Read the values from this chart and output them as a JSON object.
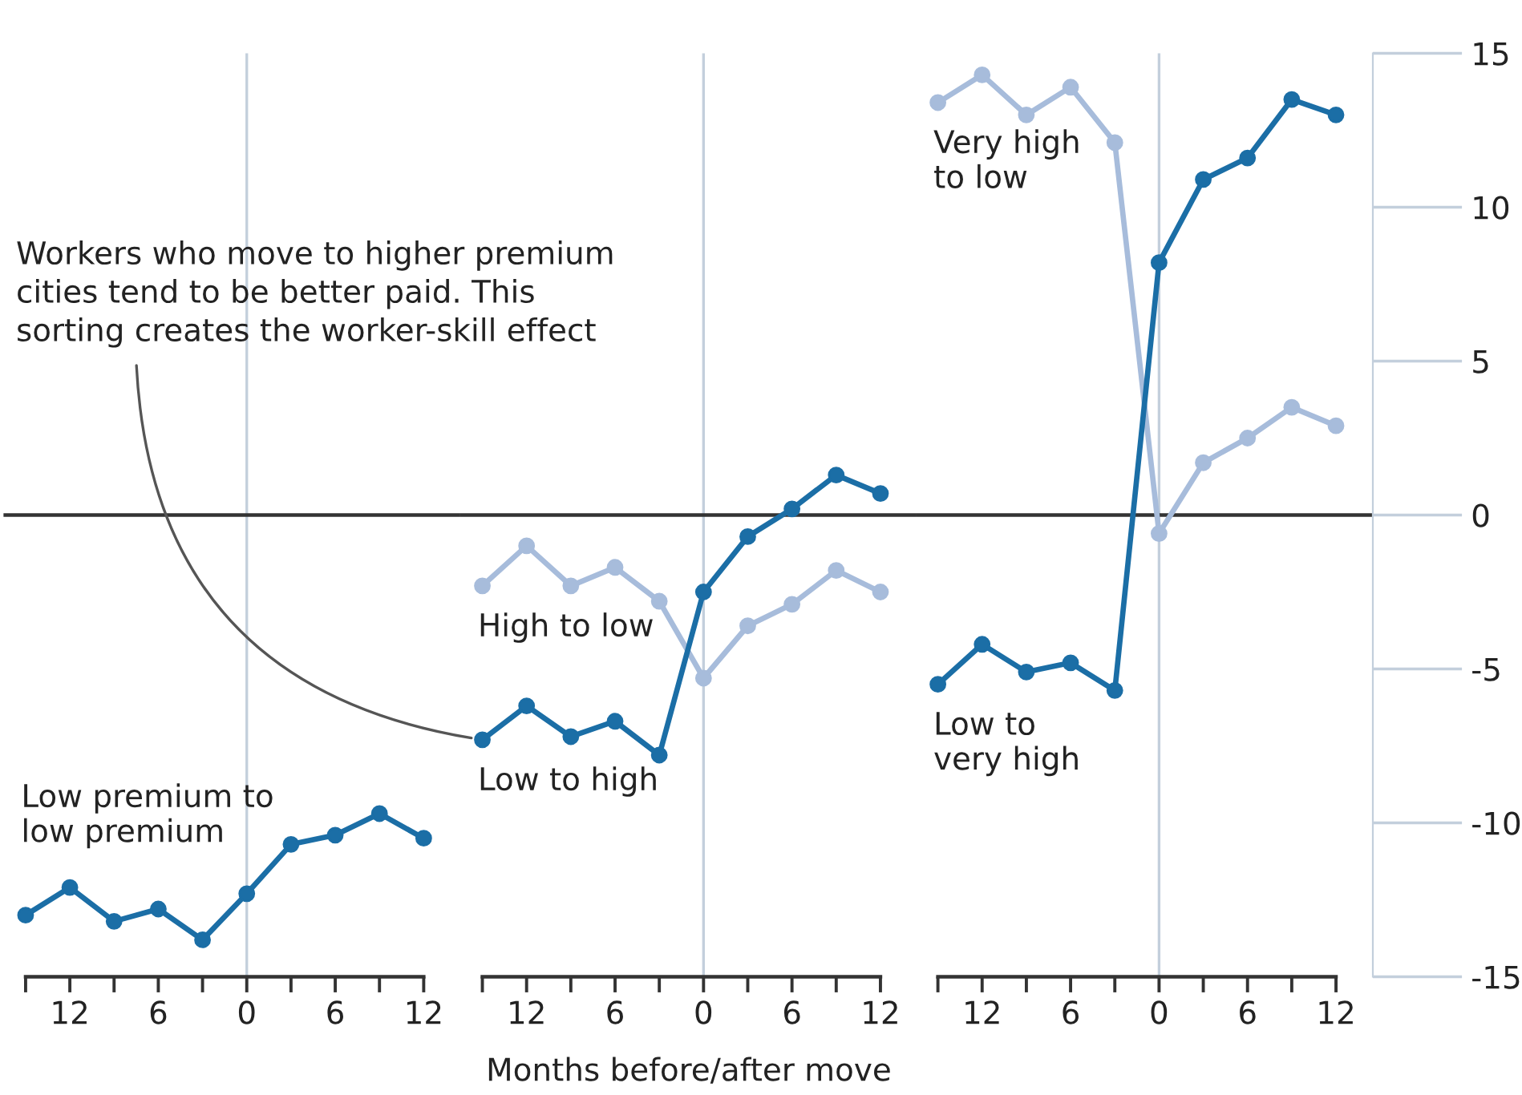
{
  "chart_data": [
    {
      "type": "line",
      "x": [
        -15,
        -12,
        -9,
        -6,
        -3,
        0,
        3,
        6,
        9,
        12
      ],
      "marker": "circle",
      "line_style": "solid",
      "series": [
        {
          "name": "Low premium to\nlow premium",
          "color": "#1b6ea6",
          "values": [
            -13.0,
            -12.1,
            -13.2,
            -12.8,
            -13.8,
            -12.3,
            -10.7,
            -10.4,
            -9.7,
            -10.5
          ]
        }
      ],
      "xlim": [
        -16.5,
        14.5
      ],
      "ylim": [
        -15,
        15
      ],
      "tick_labels": "x",
      "xticks": [
        {
          "value": -15,
          "label": null
        },
        {
          "value": -12,
          "label": "12"
        },
        {
          "value": -9,
          "label": null
        },
        {
          "value": -6,
          "label": "6"
        },
        {
          "value": -3,
          "label": null
        },
        0,
        {
          "value": 3,
          "label": null
        },
        6,
        {
          "value": 9,
          "label": null
        },
        12
      ],
      "ref_lines": [
        {
          "axis": "x",
          "value": 0,
          "color": "#c3cfdc"
        },
        {
          "axis": "y",
          "value": 0,
          "color": "#333333"
        }
      ]
    },
    {
      "type": "line",
      "x": [
        -15,
        -12,
        -9,
        -6,
        -3,
        0,
        3,
        6,
        9,
        12
      ],
      "marker": "circle",
      "line_style": "solid",
      "series": [
        {
          "name": "High to low",
          "color": "#a7bcdb",
          "values": [
            -2.3,
            -1.0,
            -2.3,
            -1.7,
            -2.8,
            -5.3,
            -3.6,
            -2.9,
            -1.8,
            -2.5
          ]
        },
        {
          "name": "Low to high",
          "color": "#1b6ea6",
          "values": [
            -7.3,
            -6.2,
            -7.2,
            -6.7,
            -7.8,
            -2.5,
            -0.7,
            0.2,
            1.3,
            0.7
          ]
        }
      ],
      "xlim": [
        -16.5,
        14.5
      ],
      "ylim": [
        -15,
        15
      ],
      "tick_labels": "x",
      "xlabel": "Months before/after move",
      "xticks": [
        {
          "value": -15,
          "label": null
        },
        {
          "value": -12,
          "label": "12"
        },
        {
          "value": -9,
          "label": null
        },
        {
          "value": -6,
          "label": "6"
        },
        {
          "value": -3,
          "label": null
        },
        0,
        {
          "value": 3,
          "label": null
        },
        6,
        {
          "value": 9,
          "label": null
        },
        12
      ],
      "ref_lines": [
        {
          "axis": "x",
          "value": 0,
          "color": "#c3cfdc"
        },
        {
          "axis": "y",
          "value": 0,
          "color": "#333333"
        }
      ],
      "annotations": [
        {
          "text": "Workers who move to higher premium\ncities tend to be better paid. This\nsorting creates the worker-skill effect",
          "x": -15,
          "y": -7.3
        }
      ]
    },
    {
      "type": "line",
      "x": [
        -15,
        -12,
        -9,
        -6,
        -3,
        0,
        3,
        6,
        9,
        12
      ],
      "marker": "circle",
      "line_style": "solid",
      "series": [
        {
          "name": "Very high\nto low",
          "color": "#a7bcdb",
          "values": [
            13.4,
            14.3,
            13.0,
            13.9,
            12.1,
            -0.6,
            1.7,
            2.5,
            3.5,
            2.9
          ]
        },
        {
          "name": "Low to\nvery high",
          "color": "#1b6ea6",
          "values": [
            -5.5,
            -4.2,
            -5.1,
            -4.8,
            -5.7,
            8.2,
            10.9,
            11.6,
            13.5,
            13.0
          ]
        }
      ],
      "xlim": [
        -16.5,
        14.5
      ],
      "ylim": [
        -15,
        15
      ],
      "yticks": [
        15,
        10,
        5,
        0,
        -5,
        -10,
        -15
      ],
      "xticks": [
        {
          "value": -15,
          "label": null
        },
        {
          "value": -12,
          "label": "12"
        },
        {
          "value": -9,
          "label": null
        },
        {
          "value": -6,
          "label": "6"
        },
        {
          "value": -3,
          "label": null
        },
        0,
        {
          "value": 3,
          "label": null
        },
        6,
        {
          "value": 9,
          "label": null
        },
        12
      ],
      "ref_lines": [
        {
          "axis": "x",
          "value": 0,
          "color": "#c3cfdc"
        },
        {
          "axis": "y",
          "value": 0,
          "color": "#333333"
        }
      ]
    }
  ]
}
